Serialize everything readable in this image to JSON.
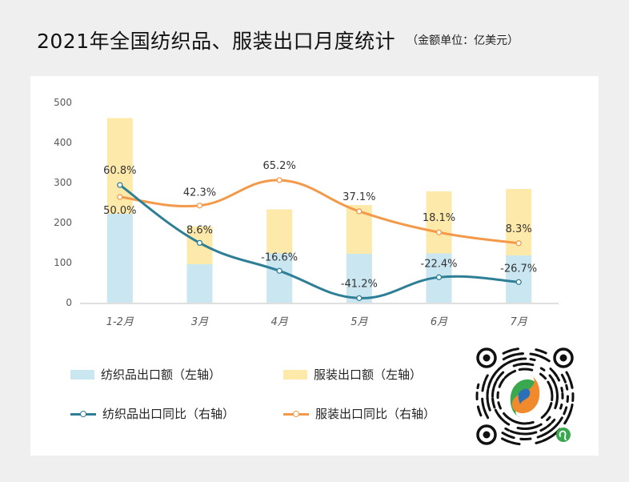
{
  "title": "2021年全国纺织品、服装出口月度统计",
  "unit_note": "（金额单位：亿美元）",
  "colors": {
    "textile_bar": "#c9e6f1",
    "apparel_bar": "#fde9a9",
    "textile_line": "#2e7f96",
    "apparel_line": "#f39a4a",
    "axis": "#bfbfbf",
    "tick_text": "#595959",
    "label_text": "#333333"
  },
  "legend": {
    "textile_bar": "纺织品出口额（左轴）",
    "apparel_bar": "服装出口额（左轴）",
    "textile_line": "纺织品出口同比（右轴）",
    "apparel_line": "服装出口同比（右轴）"
  },
  "chart_data": {
    "type": "bar",
    "title": "2021年全国纺织品、服装出口月度统计",
    "categories": [
      "1-2月",
      "3月",
      "4月",
      "5月",
      "6月",
      "7月"
    ],
    "y_ticks": [
      0,
      100,
      200,
      300,
      400,
      500
    ],
    "ylim": [
      0,
      500
    ],
    "series": [
      {
        "name": "纺织品出口额（左轴）",
        "type": "bar",
        "values": [
          222,
          96,
          123,
          122,
          123,
          118
        ]
      },
      {
        "name": "服装出口额（左轴）",
        "type": "bar",
        "values": [
          461,
          190,
          233,
          244,
          278,
          284
        ]
      },
      {
        "name": "纺织品出口同比（右轴）",
        "type": "line",
        "values": [
          60.8,
          8.6,
          -16.6,
          -41.2,
          -22.4,
          -26.7
        ],
        "labels": [
          "60.8%",
          "8.6%",
          "-16.6%",
          "-41.2%",
          "-22.4%",
          "-26.7%"
        ]
      },
      {
        "name": "服装出口同比（右轴）",
        "type": "line",
        "values": [
          50.0,
          42.3,
          65.2,
          37.1,
          18.1,
          8.3
        ],
        "labels": [
          "50.0%",
          "42.3%",
          "65.2%",
          "37.1%",
          "18.1%",
          "8.3%"
        ]
      }
    ],
    "grid": false,
    "legend_position": "bottom"
  }
}
